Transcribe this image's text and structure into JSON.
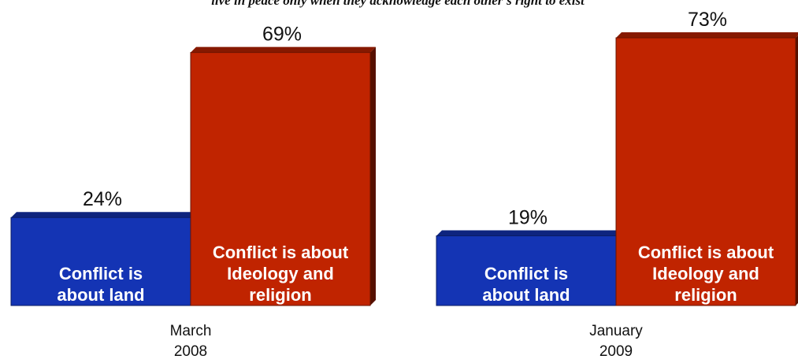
{
  "chart_data": {
    "type": "bar",
    "title": "live in peace only when they acknowledge each other's right to exist",
    "categories": [
      "March 2008",
      "January 2009"
    ],
    "category_lines": [
      [
        "March",
        "2008"
      ],
      [
        "January",
        "2009"
      ]
    ],
    "series": [
      {
        "label_lines": [
          "Conflict is",
          "about land"
        ],
        "color": "#1434b4",
        "values": [
          24,
          19
        ],
        "value_labels": [
          "24%",
          "19%"
        ]
      },
      {
        "label_lines": [
          "Conflict is about",
          "Ideology and",
          "religion"
        ],
        "color": "#c02400",
        "values": [
          69,
          73
        ],
        "value_labels": [
          "69%",
          "73%"
        ]
      }
    ],
    "ylim": [
      0,
      73
    ],
    "grid": false,
    "legend": "none"
  }
}
